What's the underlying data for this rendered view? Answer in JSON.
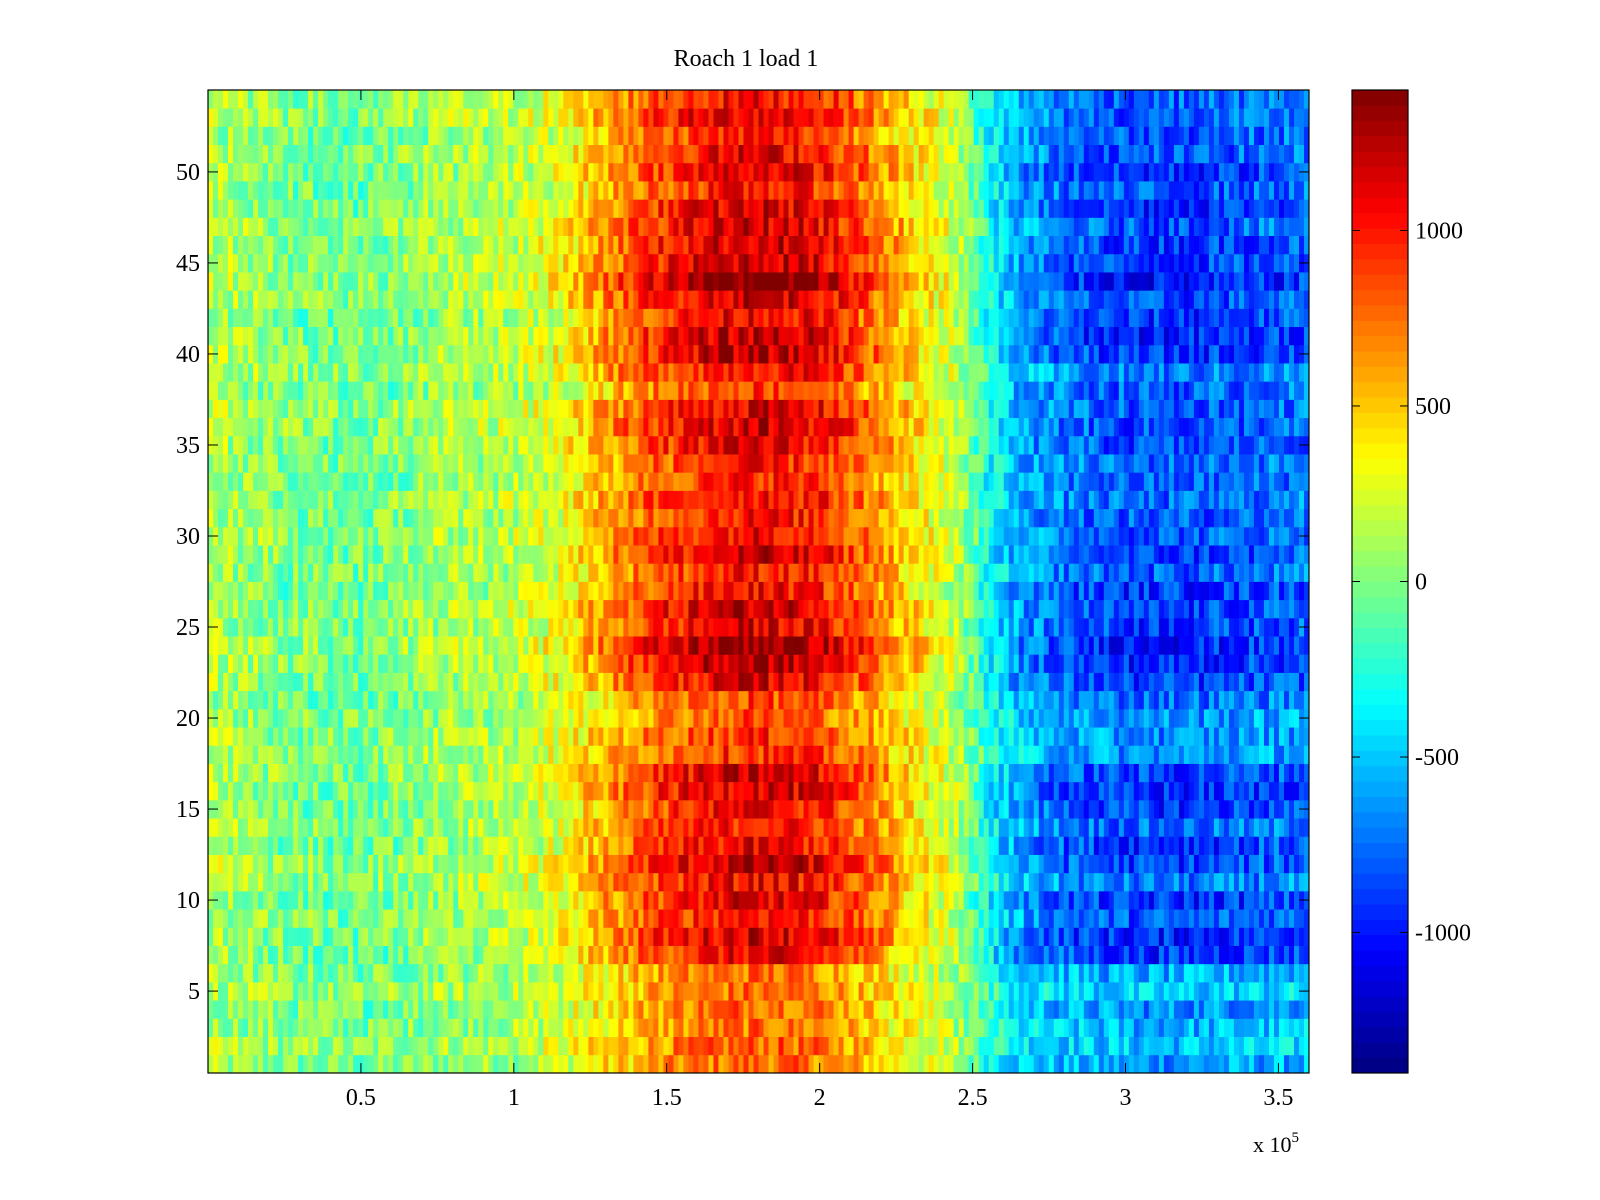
{
  "chart_data": {
    "type": "heatmap",
    "title": "Roach 1 load 1",
    "xlabel": "",
    "ylabel": "",
    "x_multiplier_label": "x 10",
    "x_multiplier_exponent": "5",
    "xlim": [
      0,
      360000
    ],
    "ylim": [
      0.5,
      54.5
    ],
    "x_ticks": [
      {
        "value": 50000,
        "label": "0.5"
      },
      {
        "value": 100000,
        "label": "1"
      },
      {
        "value": 150000,
        "label": "1.5"
      },
      {
        "value": 200000,
        "label": "2"
      },
      {
        "value": 250000,
        "label": "2.5"
      },
      {
        "value": 300000,
        "label": "3"
      },
      {
        "value": 350000,
        "label": "3.5"
      }
    ],
    "y_ticks": [
      {
        "value": 5,
        "label": "5"
      },
      {
        "value": 10,
        "label": "10"
      },
      {
        "value": 15,
        "label": "15"
      },
      {
        "value": 20,
        "label": "20"
      },
      {
        "value": 25,
        "label": "25"
      },
      {
        "value": 30,
        "label": "30"
      },
      {
        "value": 35,
        "label": "35"
      },
      {
        "value": 40,
        "label": "40"
      },
      {
        "value": 45,
        "label": "45"
      },
      {
        "value": 50,
        "label": "50"
      }
    ],
    "rows": 54,
    "colormap": "jet",
    "clim": [
      -1400,
      1400
    ],
    "colorbar": {
      "ticks": [
        {
          "value": 1000,
          "label": "1000"
        },
        {
          "value": 500,
          "label": "500"
        },
        {
          "value": 0,
          "label": "0"
        },
        {
          "value": -500,
          "label": "-500"
        },
        {
          "value": -1000,
          "label": "-1000"
        }
      ]
    },
    "profile_x": [
      0,
      25000,
      50000,
      75000,
      100000,
      115000,
      130000,
      145000,
      160000,
      175000,
      185000,
      200000,
      215000,
      230000,
      245000,
      255000,
      265000,
      280000,
      300000,
      320000,
      340000,
      360000
    ],
    "profile_value": [
      150,
      0,
      -50,
      80,
      150,
      300,
      600,
      850,
      1000,
      1100,
      1100,
      1000,
      750,
      450,
      150,
      -300,
      -600,
      -750,
      -850,
      -850,
      -800,
      -750
    ],
    "row_modulation": [
      {
        "y_range": [
          1,
          7
        ],
        "factor": 0.7
      },
      {
        "y_range": [
          7,
          11
        ],
        "factor": 1.05
      },
      {
        "y_range": [
          11,
          18
        ],
        "factor": 1.0
      },
      {
        "y_range": [
          18,
          22
        ],
        "factor": 0.85
      },
      {
        "y_range": [
          22,
          25
        ],
        "factor": 1.15
      },
      {
        "y_range": [
          25,
          34
        ],
        "factor": 1.0
      },
      {
        "y_range": [
          34,
          40
        ],
        "factor": 0.95
      },
      {
        "y_range": [
          40,
          47
        ],
        "factor": 1.15
      },
      {
        "y_range": [
          47,
          55
        ],
        "factor": 1.0
      }
    ],
    "grid": false
  }
}
